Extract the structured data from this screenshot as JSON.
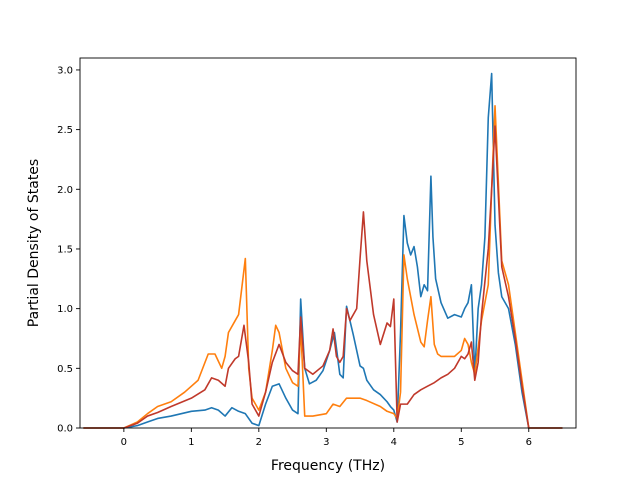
{
  "chart_data": {
    "type": "line",
    "xlabel": "Frequency (THz)",
    "ylabel": "Partial Density of States",
    "xlim": [
      -0.65,
      6.7
    ],
    "ylim": [
      0,
      3.1
    ],
    "xticks": [
      0,
      1,
      2,
      3,
      4,
      5,
      6
    ],
    "yticks": [
      0.0,
      0.5,
      1.0,
      1.5,
      2.0,
      2.5,
      3.0
    ],
    "xtick_labels": [
      "0",
      "1",
      "2",
      "3",
      "4",
      "5",
      "6"
    ],
    "ytick_labels": [
      "0.0",
      "0.5",
      "1.0",
      "1.5",
      "2.0",
      "2.5",
      "3.0"
    ],
    "grid": false,
    "series": [
      {
        "color": "#1f77b4",
        "x": [
          -0.6,
          0.0,
          0.2,
          0.35,
          0.5,
          0.7,
          1.0,
          1.2,
          1.3,
          1.4,
          1.5,
          1.6,
          1.7,
          1.8,
          1.9,
          2.0,
          2.1,
          2.2,
          2.3,
          2.4,
          2.5,
          2.58,
          2.62,
          2.68,
          2.75,
          2.85,
          2.95,
          3.05,
          3.12,
          3.2,
          3.25,
          3.3,
          3.4,
          3.5,
          3.55,
          3.6,
          3.7,
          3.8,
          3.9,
          3.95,
          4.0,
          4.05,
          4.1,
          4.15,
          4.2,
          4.25,
          4.3,
          4.35,
          4.4,
          4.45,
          4.5,
          4.55,
          4.58,
          4.62,
          4.7,
          4.8,
          4.9,
          5.0,
          5.05,
          5.1,
          5.15,
          5.2,
          5.25,
          5.3,
          5.35,
          5.4,
          5.45,
          5.5,
          5.55,
          5.6,
          5.7,
          5.8,
          5.9,
          6.0,
          6.5
        ],
        "y": [
          0.0,
          0.0,
          0.02,
          0.05,
          0.08,
          0.1,
          0.14,
          0.15,
          0.17,
          0.15,
          0.1,
          0.17,
          0.14,
          0.12,
          0.04,
          0.02,
          0.2,
          0.35,
          0.37,
          0.25,
          0.15,
          0.12,
          1.08,
          0.5,
          0.37,
          0.4,
          0.48,
          0.65,
          0.8,
          0.45,
          0.42,
          1.02,
          0.78,
          0.52,
          0.5,
          0.4,
          0.32,
          0.28,
          0.22,
          0.18,
          0.15,
          0.05,
          0.8,
          1.78,
          1.55,
          1.45,
          1.52,
          1.35,
          1.1,
          1.2,
          1.15,
          2.11,
          1.6,
          1.25,
          1.05,
          0.92,
          0.95,
          0.93,
          1.0,
          1.05,
          1.2,
          0.45,
          1.0,
          1.2,
          1.6,
          2.6,
          2.97,
          1.7,
          1.3,
          1.1,
          1.0,
          0.7,
          0.3,
          0.0,
          0.0
        ]
      },
      {
        "color": "#ff7f0e",
        "x": [
          -0.6,
          0.0,
          0.2,
          0.35,
          0.5,
          0.7,
          0.9,
          1.1,
          1.25,
          1.35,
          1.45,
          1.5,
          1.55,
          1.65,
          1.7,
          1.8,
          1.85,
          1.9,
          2.0,
          2.1,
          2.2,
          2.25,
          2.3,
          2.4,
          2.5,
          2.58,
          2.62,
          2.68,
          2.8,
          3.0,
          3.1,
          3.2,
          3.3,
          3.5,
          3.6,
          3.8,
          3.9,
          4.0,
          4.05,
          4.1,
          4.15,
          4.2,
          4.3,
          4.4,
          4.45,
          4.5,
          4.55,
          4.6,
          4.65,
          4.7,
          4.8,
          4.9,
          5.0,
          5.05,
          5.1,
          5.15,
          5.2,
          5.3,
          5.4,
          5.45,
          5.5,
          5.6,
          5.7,
          5.8,
          5.9,
          6.0,
          6.5
        ],
        "y": [
          0.0,
          0.0,
          0.05,
          0.12,
          0.18,
          0.22,
          0.3,
          0.4,
          0.62,
          0.62,
          0.5,
          0.6,
          0.8,
          0.9,
          0.95,
          1.42,
          0.5,
          0.25,
          0.15,
          0.3,
          0.65,
          0.86,
          0.8,
          0.5,
          0.38,
          0.35,
          0.85,
          0.1,
          0.1,
          0.12,
          0.2,
          0.18,
          0.25,
          0.25,
          0.23,
          0.18,
          0.14,
          0.12,
          0.08,
          0.3,
          1.45,
          1.25,
          0.95,
          0.72,
          0.68,
          0.9,
          1.1,
          0.7,
          0.62,
          0.6,
          0.6,
          0.6,
          0.65,
          0.75,
          0.7,
          0.55,
          0.45,
          0.9,
          1.2,
          2.0,
          2.7,
          1.4,
          1.2,
          0.8,
          0.4,
          0.0,
          0.0
        ]
      },
      {
        "color": "#c0392b",
        "x": [
          -0.6,
          0.0,
          0.2,
          0.35,
          0.5,
          0.7,
          1.0,
          1.2,
          1.3,
          1.4,
          1.5,
          1.55,
          1.65,
          1.7,
          1.78,
          1.85,
          1.9,
          2.0,
          2.1,
          2.2,
          2.3,
          2.4,
          2.5,
          2.58,
          2.62,
          2.68,
          2.8,
          2.95,
          3.05,
          3.1,
          3.15,
          3.2,
          3.25,
          3.3,
          3.35,
          3.45,
          3.5,
          3.55,
          3.6,
          3.7,
          3.8,
          3.9,
          3.95,
          4.0,
          4.05,
          4.1,
          4.15,
          4.2,
          4.3,
          4.4,
          4.5,
          4.6,
          4.7,
          4.8,
          4.9,
          5.0,
          5.05,
          5.1,
          5.15,
          5.2,
          5.25,
          5.3,
          5.4,
          5.45,
          5.5,
          5.6,
          5.7,
          5.8,
          5.9,
          6.0,
          6.5
        ],
        "y": [
          0.0,
          0.0,
          0.04,
          0.1,
          0.13,
          0.18,
          0.25,
          0.32,
          0.42,
          0.4,
          0.35,
          0.5,
          0.58,
          0.6,
          0.86,
          0.55,
          0.2,
          0.1,
          0.3,
          0.55,
          0.7,
          0.55,
          0.48,
          0.45,
          0.93,
          0.5,
          0.45,
          0.52,
          0.65,
          0.83,
          0.6,
          0.55,
          0.6,
          1.0,
          0.9,
          1.0,
          1.42,
          1.81,
          1.4,
          0.95,
          0.7,
          0.88,
          0.85,
          1.08,
          0.05,
          0.2,
          0.2,
          0.2,
          0.28,
          0.32,
          0.35,
          0.38,
          0.42,
          0.45,
          0.5,
          0.6,
          0.58,
          0.62,
          0.72,
          0.4,
          0.55,
          0.95,
          1.5,
          2.0,
          2.53,
          1.35,
          1.1,
          0.75,
          0.35,
          0.0,
          0.0
        ]
      }
    ]
  }
}
